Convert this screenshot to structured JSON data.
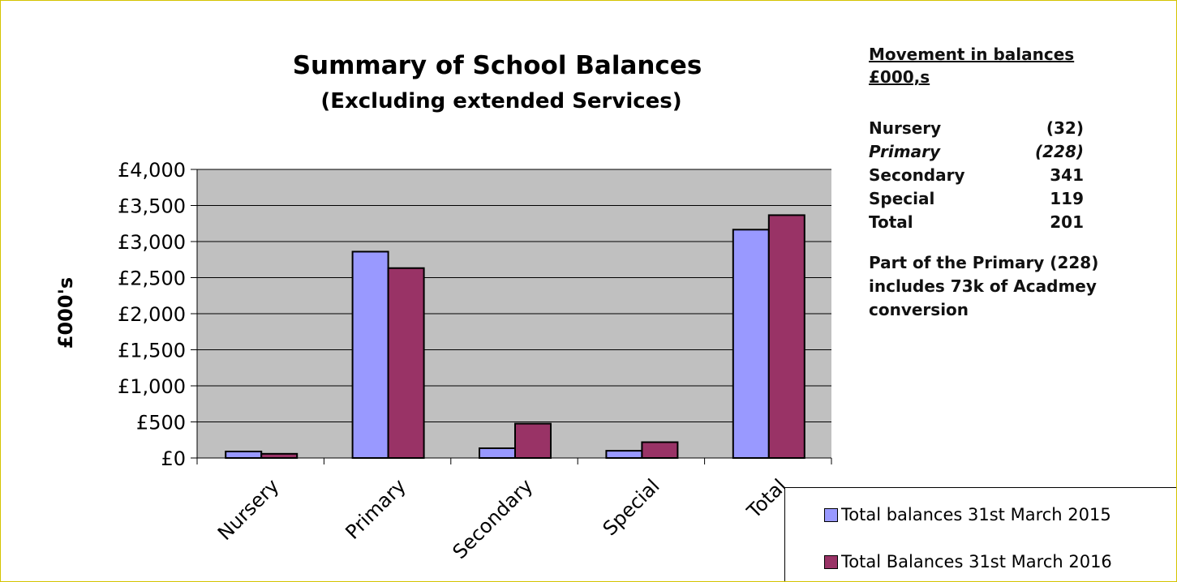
{
  "chart_data": {
    "type": "bar",
    "title": "Summary of School Balances",
    "subtitle": "(Excluding extended Services)",
    "ylabel": "£000's",
    "xlabel": "",
    "categories": [
      "Nursery",
      "Primary",
      "Secondary",
      "Special",
      "Total"
    ],
    "series": [
      {
        "name": "Total balances 31st March 2015",
        "color": "#9999ff",
        "values": [
          90,
          2860,
          135,
          100,
          3165
        ]
      },
      {
        "name": "Total Balances 31st March 2016",
        "color": "#993366",
        "values": [
          58,
          2632,
          476,
          219,
          3366
        ]
      }
    ],
    "ylim": [
      0,
      4000
    ],
    "yticks": [
      0,
      500,
      1000,
      1500,
      2000,
      2500,
      3000,
      3500,
      4000
    ],
    "ytick_labels": [
      "£0",
      "£500",
      "£1,000",
      "£1,500",
      "£2,000",
      "£2,500",
      "£3,000",
      "£3,500",
      "£4,000"
    ],
    "grid": true,
    "plot_background": "#c0c0c0",
    "legend_position": "bottom-right"
  },
  "side_panel": {
    "heading_line1": "Movement in balances",
    "heading_line2": "£000,s",
    "rows": [
      {
        "label": "Nursery",
        "value": "(32)"
      },
      {
        "label": "Primary",
        "value": "(228)"
      },
      {
        "label": "Secondary",
        "value": "341"
      },
      {
        "label": "Special",
        "value": "119"
      },
      {
        "label": "Total",
        "value": "201"
      }
    ],
    "note": "Part of the Primary  (228) includes 73k of Acadmey conversion"
  }
}
